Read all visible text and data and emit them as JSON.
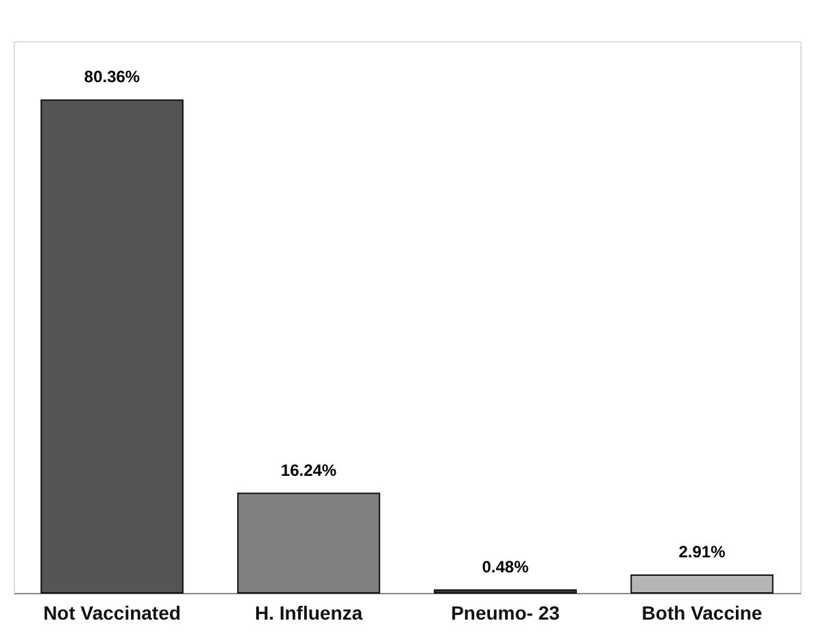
{
  "chart_data": {
    "type": "bar",
    "categories": [
      "Not Vaccinated",
      "H. Influenza",
      "Pneumo- 23",
      "Both Vaccine"
    ],
    "values": [
      80.36,
      16.24,
      0.48,
      2.91
    ],
    "colors": [
      "#555555",
      "#808080",
      "#3a3a3a",
      "#b5b5b5"
    ],
    "value_labels": [
      "80.36%",
      "16.24%",
      "0.48%",
      "2.91%"
    ]
  }
}
